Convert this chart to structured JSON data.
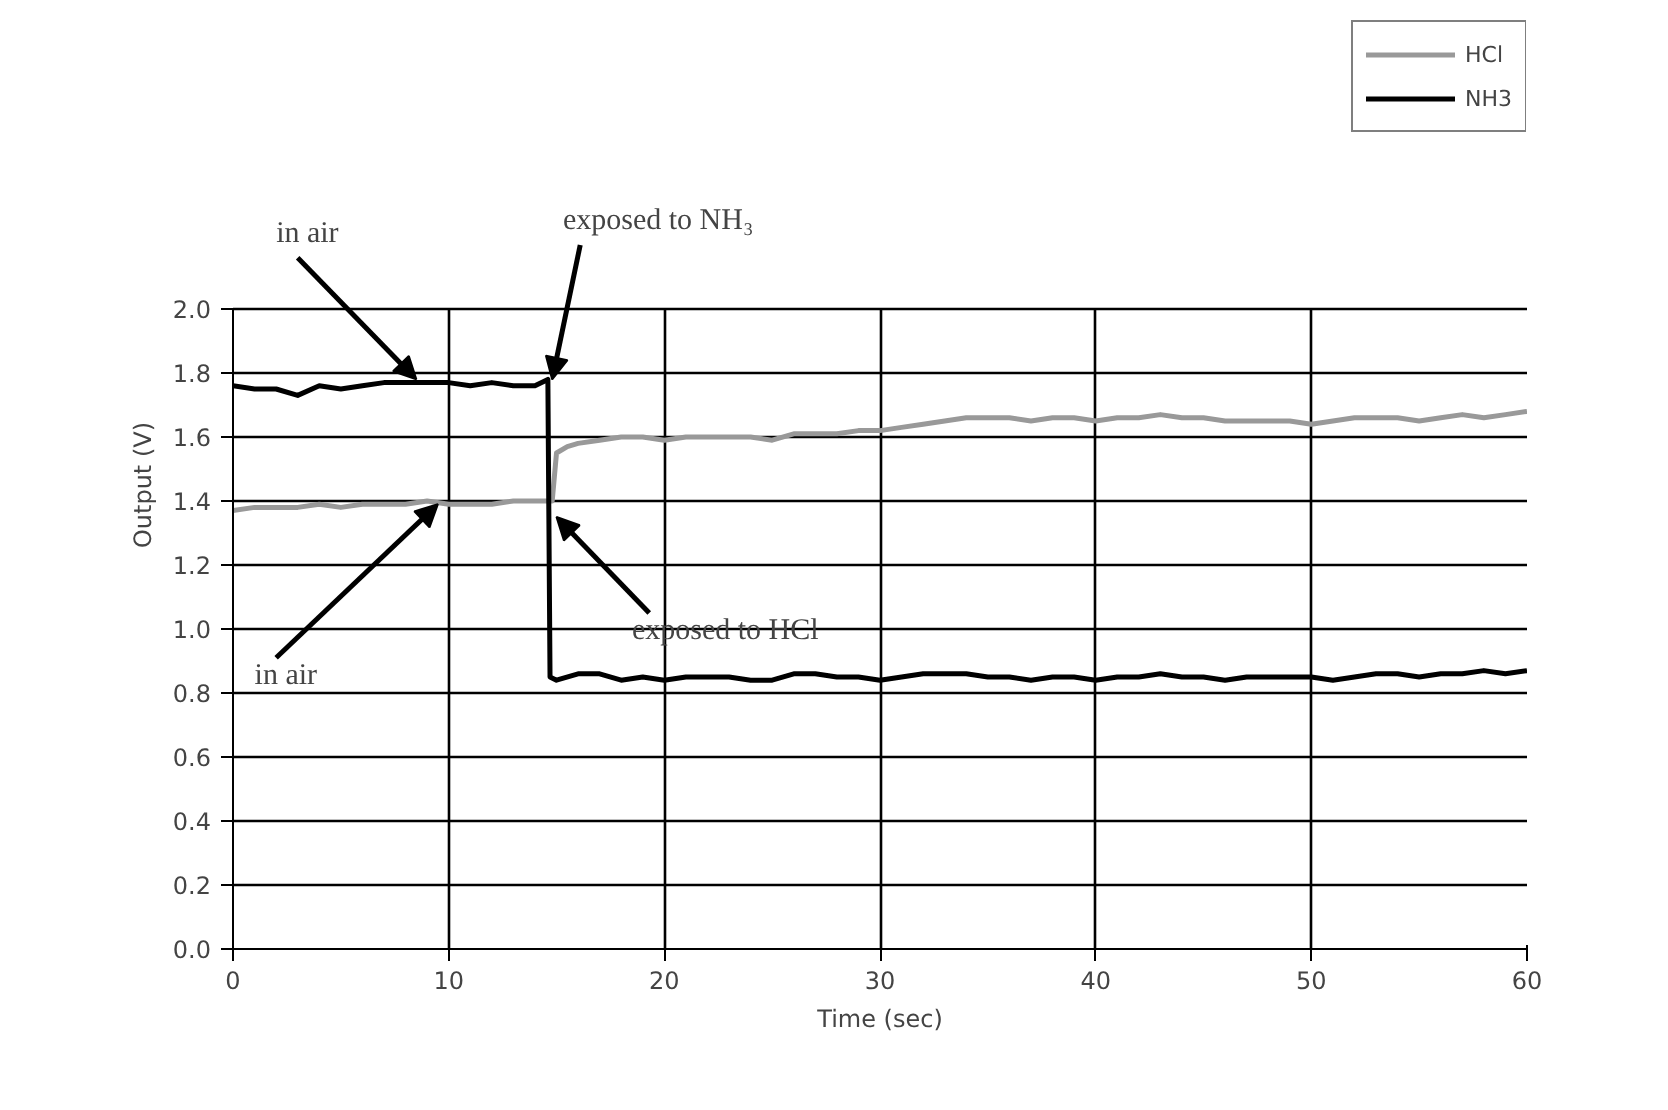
{
  "chart_data": {
    "type": "line",
    "xlabel": "Time (sec)",
    "ylabel": "Output (V)",
    "xlim": [
      0,
      60
    ],
    "ylim": [
      0,
      2.0
    ],
    "xticks": [
      0,
      10,
      20,
      30,
      40,
      50,
      60
    ],
    "yticks": [
      {
        "value": 0,
        "label": "0.0"
      },
      {
        "value": 0.2,
        "label": "0.2"
      },
      {
        "value": 0.4,
        "label": "0.4"
      },
      {
        "value": 0.6,
        "label": "0.6"
      },
      {
        "value": 0.8,
        "label": "0.8"
      },
      {
        "value": 1.0,
        "label": "1.0"
      },
      {
        "value": 1.2,
        "label": "1.2"
      },
      {
        "value": 1.4,
        "label": "1.4"
      },
      {
        "value": 1.6,
        "label": "1.6"
      },
      {
        "value": 1.8,
        "label": "1.8"
      },
      {
        "value": 2.0,
        "label": "2.0"
      }
    ],
    "grid": true,
    "legend": "top right",
    "line_style": "solid",
    "marker": "none",
    "series": [
      {
        "name": "HCl",
        "color": "#999999",
        "x": [
          0,
          1,
          2,
          3,
          4,
          5,
          6,
          7,
          8,
          9,
          10,
          11,
          12,
          13,
          14,
          14.8,
          15,
          15.5,
          16,
          17,
          18,
          19,
          20,
          21,
          22,
          23,
          24,
          25,
          26,
          27,
          28,
          29,
          30,
          31,
          32,
          33,
          34,
          35,
          36,
          37,
          38,
          39,
          40,
          41,
          42,
          43,
          44,
          45,
          46,
          47,
          48,
          49,
          50,
          51,
          52,
          53,
          54,
          55,
          56,
          57,
          58,
          59,
          60
        ],
        "values": [
          1.37,
          1.38,
          1.38,
          1.38,
          1.39,
          1.38,
          1.39,
          1.39,
          1.39,
          1.4,
          1.39,
          1.39,
          1.39,
          1.4,
          1.4,
          1.4,
          1.55,
          1.57,
          1.58,
          1.59,
          1.6,
          1.6,
          1.59,
          1.6,
          1.6,
          1.6,
          1.6,
          1.59,
          1.61,
          1.61,
          1.61,
          1.62,
          1.62,
          1.63,
          1.64,
          1.65,
          1.66,
          1.66,
          1.66,
          1.65,
          1.66,
          1.66,
          1.65,
          1.66,
          1.66,
          1.67,
          1.66,
          1.66,
          1.65,
          1.65,
          1.65,
          1.65,
          1.64,
          1.65,
          1.66,
          1.66,
          1.66,
          1.65,
          1.66,
          1.67,
          1.66,
          1.67,
          1.68
        ]
      },
      {
        "name": "NH3",
        "color": "#000000",
        "x": [
          0,
          1,
          2,
          3,
          4,
          5,
          6,
          7,
          8,
          9,
          10,
          11,
          12,
          13,
          14,
          14.6,
          14.7,
          15,
          16,
          17,
          18,
          19,
          20,
          21,
          22,
          23,
          24,
          25,
          26,
          27,
          28,
          29,
          30,
          31,
          32,
          33,
          34,
          35,
          36,
          37,
          38,
          39,
          40,
          41,
          42,
          43,
          44,
          45,
          46,
          47,
          48,
          49,
          50,
          51,
          52,
          53,
          54,
          55,
          56,
          57,
          58,
          59,
          60
        ],
        "values": [
          1.76,
          1.75,
          1.75,
          1.73,
          1.76,
          1.75,
          1.76,
          1.77,
          1.77,
          1.77,
          1.77,
          1.76,
          1.77,
          1.76,
          1.76,
          1.78,
          0.85,
          0.84,
          0.86,
          0.86,
          0.84,
          0.85,
          0.84,
          0.85,
          0.85,
          0.85,
          0.84,
          0.84,
          0.86,
          0.86,
          0.85,
          0.85,
          0.84,
          0.85,
          0.86,
          0.86,
          0.86,
          0.85,
          0.85,
          0.84,
          0.85,
          0.85,
          0.84,
          0.85,
          0.85,
          0.86,
          0.85,
          0.85,
          0.84,
          0.85,
          0.85,
          0.85,
          0.85,
          0.84,
          0.85,
          0.86,
          0.86,
          0.85,
          0.86,
          0.86,
          0.87,
          0.86,
          0.87
        ]
      }
    ],
    "annotations": [
      {
        "text": "in air",
        "x": 8.5,
        "y": 1.78
      },
      {
        "text": "exposed to NH₃",
        "x": 14.8,
        "y": 1.78
      },
      {
        "text": "in air",
        "x": 9.5,
        "y": 1.39
      },
      {
        "text": "exposed to HCl",
        "x": 15,
        "y": 1.35
      }
    ]
  }
}
